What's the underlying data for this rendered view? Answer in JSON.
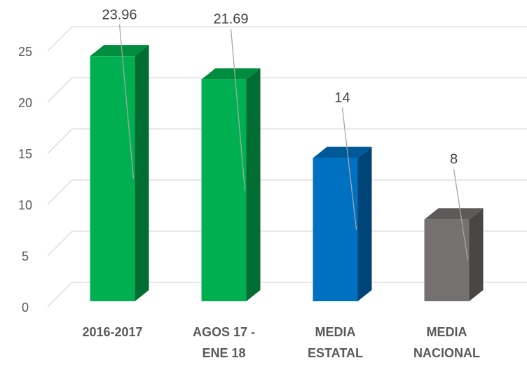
{
  "chart_data": {
    "type": "bar3d",
    "categories": [
      "2016-2017",
      "AGOS 17 - ENE 18",
      "MEDIA ESTATAL",
      "MEDIA NACIONAL"
    ],
    "values": [
      23.96,
      21.69,
      14,
      8
    ],
    "colors": [
      "#00b050",
      "#00b050",
      "#0070c0",
      "#767171"
    ],
    "ylim": [
      0,
      25
    ],
    "yticks": [
      0,
      5,
      10,
      15,
      20,
      25
    ],
    "grid": true
  }
}
